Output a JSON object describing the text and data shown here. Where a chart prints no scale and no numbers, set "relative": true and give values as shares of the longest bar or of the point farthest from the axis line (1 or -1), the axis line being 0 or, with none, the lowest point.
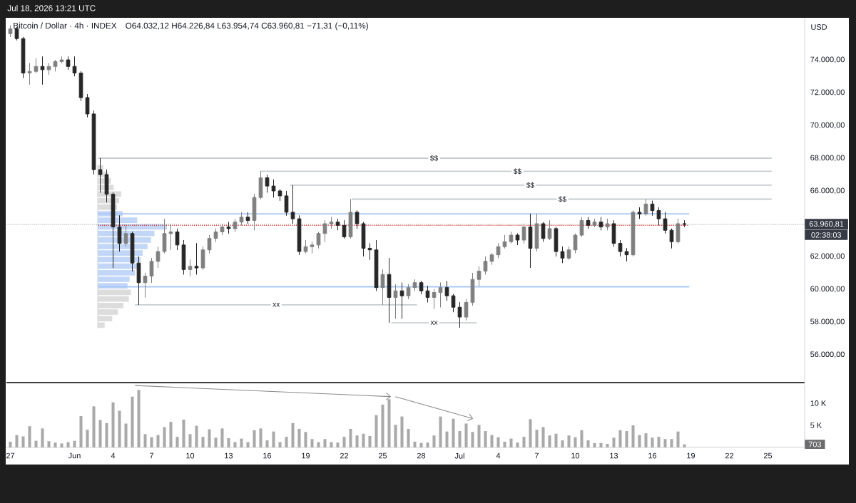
{
  "chart_data": [
    {
      "type": "candlestick",
      "title": "Bitcoin / Dollar · 4h · INDEX",
      "subtitle": "O64.032,12  H64.226,84  L63.954,74  C63.960,81  −71,31 (−0,11%)",
      "ylabel": "USD",
      "x": [
        "2026-05-27T00:00",
        "2026-05-27T12:00",
        "2026-05-28T00:00",
        "2026-05-28T12:00",
        "2026-05-29T00:00",
        "2026-05-29T12:00",
        "2026-05-30T00:00",
        "2026-05-30T12:00",
        "2026-05-31T00:00",
        "2026-05-31T12:00",
        "2026-06-01T00:00",
        "2026-06-01T12:00",
        "2026-06-02T00:00",
        "2026-06-02T12:00",
        "2026-06-03T00:00",
        "2026-06-03T12:00",
        "2026-06-04T00:00",
        "2026-06-04T12:00",
        "2026-06-05T00:00",
        "2026-06-05T12:00",
        "2026-06-06T00:00",
        "2026-06-06T12:00",
        "2026-06-07T00:00",
        "2026-06-07T12:00",
        "2026-06-08T00:00",
        "2026-06-08T12:00",
        "2026-06-09T00:00",
        "2026-06-09T12:00",
        "2026-06-10T00:00",
        "2026-06-10T12:00",
        "2026-06-11T00:00",
        "2026-06-11T12:00",
        "2026-06-12T00:00",
        "2026-06-12T12:00",
        "2026-06-13T00:00",
        "2026-06-13T12:00",
        "2026-06-14T00:00",
        "2026-06-14T12:00",
        "2026-06-15T00:00",
        "2026-06-15T12:00",
        "2026-06-16T00:00",
        "2026-06-16T12:00",
        "2026-06-17T00:00",
        "2026-06-17T12:00",
        "2026-06-18T00:00",
        "2026-06-18T12:00",
        "2026-06-19T00:00",
        "2026-06-19T12:00",
        "2026-06-20T00:00",
        "2026-06-20T12:00",
        "2026-06-21T00:00",
        "2026-06-21T12:00",
        "2026-06-22T00:00",
        "2026-06-22T12:00",
        "2026-06-23T00:00",
        "2026-06-23T12:00",
        "2026-06-24T00:00",
        "2026-06-24T12:00",
        "2026-06-25T00:00",
        "2026-06-25T12:00",
        "2026-06-26T00:00",
        "2026-06-26T12:00",
        "2026-06-27T00:00",
        "2026-06-27T12:00",
        "2026-06-28T00:00",
        "2026-06-28T12:00",
        "2026-06-29T00:00",
        "2026-06-29T12:00",
        "2026-06-30T00:00",
        "2026-06-30T12:00",
        "2026-07-01T00:00",
        "2026-07-01T12:00",
        "2026-07-02T00:00",
        "2026-07-02T12:00",
        "2026-07-03T00:00",
        "2026-07-03T12:00",
        "2026-07-04T00:00",
        "2026-07-04T12:00",
        "2026-07-05T00:00",
        "2026-07-05T12:00",
        "2026-07-06T00:00",
        "2026-07-06T12:00",
        "2026-07-07T00:00",
        "2026-07-07T12:00",
        "2026-07-08T00:00",
        "2026-07-08T12:00",
        "2026-07-09T00:00",
        "2026-07-09T12:00",
        "2026-07-10T00:00",
        "2026-07-10T12:00",
        "2026-07-11T00:00",
        "2026-07-11T12:00",
        "2026-07-12T00:00",
        "2026-07-12T12:00",
        "2026-07-13T00:00",
        "2026-07-13T12:00",
        "2026-07-14T00:00",
        "2026-07-14T12:00",
        "2026-07-15T00:00",
        "2026-07-15T12:00",
        "2026-07-16T00:00",
        "2026-07-16T12:00",
        "2026-07-17T00:00",
        "2026-07-17T12:00",
        "2026-07-18T00:00",
        "2026-07-18T12:00"
      ],
      "ohlc": [
        [
          75600,
          76100,
          75400,
          75900
        ],
        [
          75900,
          76000,
          75200,
          75300
        ],
        [
          75300,
          75400,
          72900,
          73200
        ],
        [
          73200,
          73800,
          72500,
          73300
        ],
        [
          73300,
          74100,
          73200,
          73600
        ],
        [
          73600,
          74200,
          72500,
          73400
        ],
        [
          73400,
          73800,
          73100,
          73600
        ],
        [
          73600,
          74000,
          73300,
          73900
        ],
        [
          73900,
          74200,
          73800,
          74000
        ],
        [
          74000,
          74200,
          73400,
          73600
        ],
        [
          73600,
          74200,
          73000,
          73200
        ],
        [
          73200,
          73300,
          71500,
          71700
        ],
        [
          71700,
          71900,
          70500,
          70700
        ],
        [
          70700,
          70900,
          67000,
          67300
        ],
        [
          67300,
          68000,
          65900,
          67000
        ],
        [
          67000,
          67300,
          65300,
          65800
        ],
        [
          65800,
          65900,
          61300,
          63800
        ],
        [
          63800,
          64500,
          62300,
          62800
        ],
        [
          62800,
          63900,
          62600,
          63400
        ],
        [
          63400,
          63500,
          61100,
          61600
        ],
        [
          61600,
          62000,
          59050,
          60400
        ],
        [
          60400,
          61000,
          59500,
          60800
        ],
        [
          60800,
          61900,
          60400,
          61700
        ],
        [
          61700,
          62600,
          61300,
          62300
        ],
        [
          62300,
          64300,
          62200,
          63400
        ],
        [
          63400,
          64000,
          62400,
          63500
        ],
        [
          63500,
          63700,
          62400,
          62700
        ],
        [
          62700,
          63000,
          60900,
          61200
        ],
        [
          61200,
          61800,
          60800,
          61400
        ],
        [
          61400,
          62800,
          60900,
          61300
        ],
        [
          61300,
          62600,
          61200,
          62400
        ],
        [
          62400,
          63300,
          62200,
          63100
        ],
        [
          63100,
          63700,
          62900,
          63500
        ],
        [
          63500,
          64000,
          63300,
          63800
        ],
        [
          63800,
          64100,
          63400,
          63700
        ],
        [
          63700,
          64300,
          63500,
          64100
        ],
        [
          64100,
          64700,
          63900,
          64400
        ],
        [
          64400,
          64700,
          64000,
          64200
        ],
        [
          64200,
          65800,
          63600,
          65600
        ],
        [
          65600,
          67200,
          65500,
          66800
        ],
        [
          66800,
          67000,
          65900,
          66300
        ],
        [
          66300,
          66700,
          65600,
          66000
        ],
        [
          66000,
          66100,
          65400,
          65700
        ],
        [
          65700,
          66000,
          64500,
          64700
        ],
        [
          64700,
          66350,
          64000,
          64300
        ],
        [
          64300,
          64500,
          62100,
          62300
        ],
        [
          62300,
          63000,
          62200,
          62600
        ],
        [
          62600,
          62900,
          62200,
          62700
        ],
        [
          62700,
          63500,
          62500,
          63400
        ],
        [
          63400,
          64200,
          62900,
          64000
        ],
        [
          64000,
          64400,
          63700,
          64100
        ],
        [
          64100,
          64300,
          63600,
          63900
        ],
        [
          63900,
          64200,
          63100,
          63200
        ],
        [
          63200,
          65500,
          63100,
          64700
        ],
        [
          64700,
          64800,
          63700,
          64000
        ],
        [
          64000,
          64100,
          62000,
          62500
        ],
        [
          62500,
          62800,
          61800,
          62400
        ],
        [
          62400,
          63000,
          59900,
          60100
        ],
        [
          60100,
          61200,
          59050,
          60900
        ],
        [
          60900,
          61900,
          57950,
          59500
        ],
        [
          59500,
          60300,
          58200,
          59900
        ],
        [
          59900,
          60400,
          58200,
          59600
        ],
        [
          59600,
          60300,
          59400,
          60100
        ],
        [
          60100,
          60600,
          59900,
          60400
        ],
        [
          60400,
          60500,
          59700,
          59900
        ],
        [
          59900,
          60200,
          59200,
          59500
        ],
        [
          59500,
          60000,
          58800,
          59800
        ],
        [
          59800,
          60400,
          58900,
          60100
        ],
        [
          60100,
          60500,
          59300,
          59600
        ],
        [
          59600,
          59700,
          58600,
          58900
        ],
        [
          58900,
          59200,
          57650,
          58300
        ],
        [
          58300,
          59400,
          58100,
          59200
        ],
        [
          59200,
          61000,
          59000,
          60600
        ],
        [
          60600,
          61400,
          60200,
          61100
        ],
        [
          61100,
          62000,
          60900,
          61700
        ],
        [
          61700,
          62200,
          61500,
          62100
        ],
        [
          62100,
          62800,
          61900,
          62600
        ],
        [
          62600,
          63300,
          62500,
          62900
        ],
        [
          62900,
          63500,
          62800,
          63300
        ],
        [
          63300,
          63400,
          62700,
          63000
        ],
        [
          63000,
          64000,
          62800,
          63800
        ],
        [
          63800,
          64600,
          61300,
          62500
        ],
        [
          62500,
          64600,
          62300,
          64000
        ],
        [
          64000,
          64100,
          62900,
          63100
        ],
        [
          63100,
          64200,
          63000,
          63700
        ],
        [
          63700,
          63800,
          62000,
          62300
        ],
        [
          62300,
          62600,
          61600,
          61900
        ],
        [
          61900,
          62600,
          61800,
          62400
        ],
        [
          62400,
          63400,
          62200,
          63300
        ],
        [
          63300,
          64400,
          63200,
          64200
        ],
        [
          64200,
          64400,
          63700,
          63900
        ],
        [
          63900,
          64300,
          63800,
          64100
        ],
        [
          64100,
          64400,
          63600,
          63800
        ],
        [
          63800,
          64300,
          63600,
          64000
        ],
        [
          64000,
          64200,
          62600,
          62800
        ],
        [
          62800,
          63000,
          62000,
          62300
        ],
        [
          62300,
          62500,
          61700,
          62100
        ],
        [
          62100,
          64800,
          62000,
          64700
        ],
        [
          64700,
          65000,
          64300,
          64600
        ],
        [
          64600,
          65500,
          64500,
          65200
        ],
        [
          65200,
          65400,
          64500,
          64800
        ],
        [
          64800,
          65000,
          63900,
          64300
        ],
        [
          64300,
          64700,
          63400,
          63600
        ],
        [
          63600,
          63700,
          62500,
          62900
        ],
        [
          62900,
          64300,
          62800,
          64000
        ],
        [
          64000,
          64200,
          63800,
          63960
        ]
      ],
      "colors": [
        "#7f7f7f",
        "#262626",
        "#262626",
        "#7f7f7f",
        "#7f7f7f",
        "#262626",
        "#7f7f7f",
        "#7f7f7f",
        "#7f7f7f",
        "#262626",
        "#262626",
        "#262626",
        "#262626",
        "#262626",
        "#262626",
        "#262626",
        "#262626",
        "#262626",
        "#7f7f7f",
        "#262626",
        "#262626",
        "#7f7f7f",
        "#7f7f7f",
        "#7f7f7f",
        "#7f7f7f",
        "#7f7f7f",
        "#262626",
        "#262626",
        "#7f7f7f",
        "#262626",
        "#7f7f7f",
        "#7f7f7f",
        "#7f7f7f",
        "#7f7f7f",
        "#262626",
        "#7f7f7f",
        "#7f7f7f",
        "#262626",
        "#7f7f7f",
        "#7f7f7f",
        "#262626",
        "#262626",
        "#262626",
        "#262626",
        "#262626",
        "#262626",
        "#7f7f7f",
        "#7f7f7f",
        "#7f7f7f",
        "#7f7f7f",
        "#7f7f7f",
        "#262626",
        "#262626",
        "#7f7f7f",
        "#262626",
        "#262626",
        "#262626",
        "#262626",
        "#7f7f7f",
        "#262626",
        "#7f7f7f",
        "#262626",
        "#7f7f7f",
        "#7f7f7f",
        "#262626",
        "#262626",
        "#7f7f7f",
        "#7f7f7f",
        "#262626",
        "#262626",
        "#262626",
        "#7f7f7f",
        "#7f7f7f",
        "#7f7f7f",
        "#7f7f7f",
        "#7f7f7f",
        "#7f7f7f",
        "#7f7f7f",
        "#7f7f7f",
        "#262626",
        "#7f7f7f",
        "#262626",
        "#7f7f7f",
        "#262626",
        "#7f7f7f",
        "#262626",
        "#262626",
        "#7f7f7f",
        "#7f7f7f",
        "#7f7f7f",
        "#262626",
        "#7f7f7f",
        "#262626",
        "#7f7f7f",
        "#262626",
        "#262626",
        "#262626",
        "#7f7f7f",
        "#262626",
        "#7f7f7f",
        "#262626",
        "#262626",
        "#262626",
        "#262626",
        "#7f7f7f",
        "#262626"
      ],
      "series": [
        {
          "type": "line",
          "x": [
            "2026-06-02T20:00",
            "2026-07-25T07:00"
          ],
          "values": [
            68000,
            68000
          ],
          "color": "#c5cdd0"
        },
        {
          "type": "line",
          "x": [
            "2026-06-15T12:00",
            "2026-07-25T07:00"
          ],
          "values": [
            67200,
            67200
          ],
          "color": "#c5cdd0"
        },
        {
          "type": "line",
          "x": [
            "2026-06-17T19:00",
            "2026-07-25T07:00"
          ],
          "values": [
            66350,
            66350
          ],
          "color": "#c5cdd0"
        },
        {
          "type": "line",
          "x": [
            "2026-06-22T14:00",
            "2026-07-25T07:00"
          ],
          "values": [
            65500,
            65500
          ],
          "color": "#c5cdd0"
        },
        {
          "type": "line",
          "x": [
            "2026-06-05T17:00",
            "2026-06-27T16:00"
          ],
          "values": [
            59050,
            59050
          ],
          "color": "#c5cdd0"
        },
        {
          "type": "line",
          "x": [
            "2026-06-25T16:00",
            "2026-07-02T08:00"
          ],
          "values": [
            57950,
            57950
          ],
          "color": "#c5cdd0"
        },
        {
          "type": "line",
          "x": [
            "2026-06-02T20:00",
            "2026-07-18T21:00"
          ],
          "values": [
            64600,
            64600
          ],
          "color": "#a9c8f5"
        },
        {
          "type": "line",
          "x": [
            "2026-06-02T20:00",
            "2026-07-18T21:00"
          ],
          "values": [
            60150,
            60150
          ],
          "color": "#a9c8f5"
        },
        {
          "type": "line",
          "x": [
            "2026-06-02T20:00",
            "2026-07-18T21:00"
          ],
          "values": [
            63900,
            63900
          ],
          "color": "#e53935",
          "line_style": "dotted"
        }
      ],
      "xlim": [
        "2026-05-26T16:40",
        "2026-07-27T20:40"
      ],
      "ylim": [
        54300,
        76570
      ],
      "yticks": [
        {
          "value": 56000,
          "label": "56.000,00"
        },
        {
          "value": 58000,
          "label": "58.000,00"
        },
        {
          "value": 60000,
          "label": "60.000,00"
        },
        {
          "value": 62000,
          "label": "62.000,00"
        },
        {
          "value": 66000,
          "label": "66.000,00"
        },
        {
          "value": 68000,
          "label": "68.000,00"
        },
        {
          "value": 70000,
          "label": "70.000,00"
        },
        {
          "value": 72000,
          "label": "72.000,00"
        },
        {
          "value": 74000,
          "label": "74.000,00"
        }
      ],
      "tick_labels": "y",
      "ref_lines": [
        {
          "axis": "y",
          "value": 63960.81,
          "label": "63.960,81",
          "color": "#9e9e9e",
          "line_style": "dotted"
        }
      ],
      "annotations": [
        "Jul 18, 2026 13:21 UTC",
        "02:38:03",
        {
          "text": "$$",
          "x": "2026-06-29T00:00",
          "y": 68000
        },
        {
          "text": "$$",
          "x": "2026-07-05T12:00",
          "y": 67200
        },
        {
          "text": "$$",
          "x": "2026-07-06T12:00",
          "y": 66350
        },
        {
          "text": "$$",
          "x": "2026-07-09T00:00",
          "y": 65500
        },
        {
          "text": "xx",
          "x": "2026-06-16T17:00",
          "y": 59050
        },
        {
          "text": "xx",
          "x": "2026-06-29T00:00",
          "y": 57950
        }
      ]
    },
    {
      "type": "bar",
      "orientation": "horizontal",
      "relative": true,
      "categories": [
        null,
        null,
        null,
        null,
        null,
        null,
        null,
        null,
        null,
        null,
        null,
        null,
        null,
        null,
        null,
        null,
        null,
        null,
        null,
        null,
        null,
        null,
        null,
        null,
        null
      ],
      "values": [
        0.08,
        0.15,
        0.19,
        0.23,
        0.34,
        0.31,
        0.28,
        0.36,
        0.57,
        1.0,
        0.82,
        0.77,
        0.72,
        0.65,
        0.62,
        0.58,
        0.54,
        0.46,
        0.43,
        0.48,
        0.45,
        0.37,
        0.29,
        0.21,
        0.1
      ],
      "colors": [
        "#dcdcdc",
        "#dcdcdc",
        "#dcdcdc",
        "#dcdcdc",
        "#dcdcdc",
        "#dcdcdc",
        "#dcdcdc",
        "#c2d6f7",
        "#c2d6f7",
        "#c2d6f7",
        "#c2d6f7",
        "#c2d6f7",
        "#c2d6f7",
        "#c2d6f7",
        "#c2d6f7",
        "#c2d6f7",
        "#c2d6f7",
        "#c2d6f7",
        "#c2d6f7",
        "#dcdcdc",
        "#dcdcdc",
        "#dcdcdc",
        "#dcdcdc",
        "#dcdcdc",
        "#dcdcdc"
      ]
    },
    {
      "type": "bar",
      "x": [
        "2026-05-27T00:00",
        "2026-05-27T12:00",
        "2026-05-28T00:00",
        "2026-05-28T12:00",
        "2026-05-29T00:00",
        "2026-05-29T12:00",
        "2026-05-30T00:00",
        "2026-05-30T12:00",
        "2026-05-31T00:00",
        "2026-05-31T12:00",
        "2026-06-01T00:00",
        "2026-06-01T12:00",
        "2026-06-02T00:00",
        "2026-06-02T12:00",
        "2026-06-03T00:00",
        "2026-06-03T12:00",
        "2026-06-04T00:00",
        "2026-06-04T12:00",
        "2026-06-05T00:00",
        "2026-06-05T12:00",
        "2026-06-06T00:00",
        "2026-06-06T12:00",
        "2026-06-07T00:00",
        "2026-06-07T12:00",
        "2026-06-08T00:00",
        "2026-06-08T12:00",
        "2026-06-09T00:00",
        "2026-06-09T12:00",
        "2026-06-10T00:00",
        "2026-06-10T12:00",
        "2026-06-11T00:00",
        "2026-06-11T12:00",
        "2026-06-12T00:00",
        "2026-06-12T12:00",
        "2026-06-13T00:00",
        "2026-06-13T12:00",
        "2026-06-14T00:00",
        "2026-06-14T12:00",
        "2026-06-15T00:00",
        "2026-06-15T12:00",
        "2026-06-16T00:00",
        "2026-06-16T12:00",
        "2026-06-17T00:00",
        "2026-06-17T12:00",
        "2026-06-18T00:00",
        "2026-06-18T12:00",
        "2026-06-19T00:00",
        "2026-06-19T12:00",
        "2026-06-20T00:00",
        "2026-06-20T12:00",
        "2026-06-21T00:00",
        "2026-06-21T12:00",
        "2026-06-22T00:00",
        "2026-06-22T12:00",
        "2026-06-23T00:00",
        "2026-06-23T12:00",
        "2026-06-24T00:00",
        "2026-06-24T12:00",
        "2026-06-25T00:00",
        "2026-06-25T12:00",
        "2026-06-26T00:00",
        "2026-06-26T12:00",
        "2026-06-27T00:00",
        "2026-06-27T12:00",
        "2026-06-28T00:00",
        "2026-06-28T12:00",
        "2026-06-29T00:00",
        "2026-06-29T12:00",
        "2026-06-30T00:00",
        "2026-06-30T12:00",
        "2026-07-01T00:00",
        "2026-07-01T12:00",
        "2026-07-02T00:00",
        "2026-07-02T12:00",
        "2026-07-03T00:00",
        "2026-07-03T12:00",
        "2026-07-04T00:00",
        "2026-07-04T12:00",
        "2026-07-05T00:00",
        "2026-07-05T12:00",
        "2026-07-06T00:00",
        "2026-07-06T12:00",
        "2026-07-07T00:00",
        "2026-07-07T12:00",
        "2026-07-08T00:00",
        "2026-07-08T12:00",
        "2026-07-09T00:00",
        "2026-07-09T12:00",
        "2026-07-10T00:00",
        "2026-07-10T12:00",
        "2026-07-11T00:00",
        "2026-07-11T12:00",
        "2026-07-12T00:00",
        "2026-07-12T12:00",
        "2026-07-13T00:00",
        "2026-07-13T12:00",
        "2026-07-14T00:00",
        "2026-07-14T12:00",
        "2026-07-15T00:00",
        "2026-07-15T12:00",
        "2026-07-16T00:00",
        "2026-07-16T12:00",
        "2026-07-17T00:00",
        "2026-07-17T12:00",
        "2026-07-18T00:00",
        "2026-07-18T12:00"
      ],
      "series": [
        {
          "color": "#a9a9a9",
          "values": [
            1300,
            2800,
            2500,
            4800,
            1500,
            4300,
            1400,
            1100,
            900,
            1200,
            1500,
            7100,
            4000,
            9300,
            6200,
            5500,
            10200,
            8300,
            5400,
            11500,
            13000,
            3000,
            2300,
            2800,
            4600,
            5800,
            2400,
            6300,
            3000,
            4900,
            2400,
            4100,
            2200,
            4300,
            2100,
            1200,
            2000,
            1200,
            3900,
            4300,
            1600,
            3600,
            1200,
            2400,
            5500,
            4200,
            3500,
            1900,
            1200,
            1900,
            1200,
            1100,
            2400,
            4200,
            2700,
            3100,
            2600,
            7300,
            9700,
            10900,
            5100,
            7000,
            4200,
            1300,
            1000,
            1100,
            2700,
            7000,
            3600,
            6500,
            3700,
            5400,
            3500,
            5100,
            3700,
            2800,
            2300,
            1300,
            2000,
            1100,
            2400,
            6400,
            4000,
            4600,
            2700,
            3100,
            1600,
            2700,
            2300,
            3900,
            1600,
            1000,
            1000,
            800,
            2200,
            3900,
            3700,
            5000,
            2800,
            3200,
            2200,
            2400,
            1900,
            1900,
            3600,
            703
          ]
        },
        {
          "type": "line",
          "x": [
            "2026-06-05T17:00",
            "2026-06-25T15:30"
          ],
          "values": [
            14000,
            11500
          ],
          "color": "#8a8a8a"
        },
        {
          "type": "line",
          "x": [
            "2026-06-25T23:30",
            "2026-07-02T01:00"
          ],
          "values": [
            11500,
            6500
          ],
          "color": "#8a8a8a"
        }
      ],
      "xlim": [
        "2026-05-26T16:40",
        "2026-07-27T20:40"
      ],
      "xticks": [
        {
          "value": "2026-05-27",
          "label": "27"
        },
        {
          "value": "2026-06-01",
          "label": "Jun"
        },
        {
          "value": "2026-06-04",
          "label": "4"
        },
        {
          "value": "2026-06-07",
          "label": "7"
        },
        {
          "value": "2026-06-10",
          "label": "10"
        },
        {
          "value": "2026-06-13",
          "label": "13"
        },
        {
          "value": "2026-06-16",
          "label": "16"
        },
        {
          "value": "2026-06-19",
          "label": "19"
        },
        {
          "value": "2026-06-22",
          "label": "22"
        },
        {
          "value": "2026-06-25",
          "label": "25"
        },
        {
          "value": "2026-06-28",
          "label": "28"
        },
        {
          "value": "2026-07-01",
          "label": "Jul"
        },
        {
          "value": "2026-07-04",
          "label": "4"
        },
        {
          "value": "2026-07-07",
          "label": "7"
        },
        {
          "value": "2026-07-10",
          "label": "10"
        },
        {
          "value": "2026-07-13",
          "label": "13"
        },
        {
          "value": "2026-07-16",
          "label": "16"
        },
        {
          "value": "2026-07-19",
          "label": "19"
        },
        {
          "value": "2026-07-22",
          "label": "22"
        },
        {
          "value": "2026-07-25",
          "label": "25"
        }
      ],
      "ylim": [
        0,
        14190
      ],
      "yticks": [
        {
          "value": 5000,
          "label": "5 K"
        },
        {
          "value": 10000,
          "label": "10 K"
        }
      ],
      "annotations": [
        {
          "text": "703",
          "y": 703
        }
      ]
    }
  ]
}
